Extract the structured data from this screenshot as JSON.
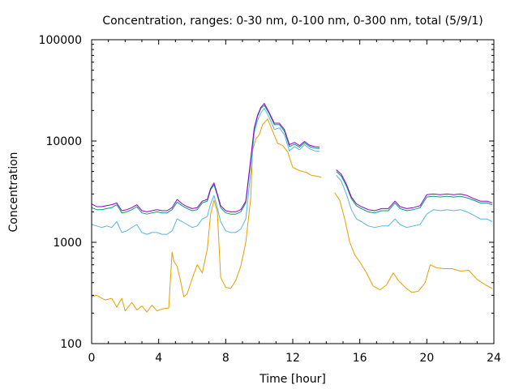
{
  "chart_data": {
    "type": "line",
    "title": "Concentration, ranges: 0-30 nm, 0-100 nm, 0-300 nm, total (5/9/1)",
    "xlabel": "Time [hour]",
    "ylabel": "Concentration",
    "xlim": [
      0,
      24
    ],
    "ylim": [
      100,
      100000
    ],
    "yscale": "log",
    "grid": false,
    "legend": "none",
    "x_ticks": [
      0,
      4,
      8,
      12,
      16,
      20,
      24
    ],
    "x_tick_labels": [
      "0",
      "4",
      "8",
      "12",
      "16",
      "20",
      "24"
    ],
    "y_ticks": [
      100,
      1000,
      10000,
      100000
    ],
    "y_tick_labels": [
      "100",
      "1000",
      "10000",
      "100000"
    ],
    "series": [
      {
        "name": "0-30 nm",
        "color": "#e69f00",
        "x": [
          0,
          0.3,
          0.8,
          1.2,
          1.5,
          1.8,
          2,
          2.4,
          2.7,
          3,
          3.3,
          3.6,
          3.9,
          4.2,
          4.6,
          4.8,
          4.9,
          5.1,
          5.3,
          5.5,
          5.7,
          6,
          6.3,
          6.6,
          6.9,
          7.1,
          7.3,
          7.5,
          7.7,
          8,
          8.3,
          8.6,
          8.9,
          9.2,
          9.5,
          9.6,
          9.8,
          10,
          10.2,
          10.5,
          10.8,
          11.1,
          11.4,
          11.7,
          12,
          12.4,
          12.8,
          13.1,
          13.4,
          13.7,
          null,
          14.5,
          14.8,
          15.1,
          15.4,
          15.7,
          16,
          16.4,
          16.8,
          17.2,
          17.6,
          18,
          18.3,
          18.7,
          19.1,
          19.5,
          19.9,
          20.2,
          20.6,
          21,
          21.5,
          22,
          22.5,
          23,
          23.5,
          23.9
        ],
        "y": [
          290,
          300,
          270,
          280,
          230,
          280,
          210,
          255,
          215,
          235,
          205,
          240,
          210,
          220,
          225,
          800,
          650,
          580,
          420,
          290,
          310,
          440,
          600,
          500,
          850,
          1900,
          2600,
          2000,
          450,
          360,
          350,
          420,
          580,
          1000,
          2800,
          8000,
          10500,
          11500,
          14500,
          16500,
          12500,
          9500,
          9000,
          7800,
          5500,
          5100,
          4900,
          4600,
          4500,
          4400,
          null,
          3100,
          2600,
          1700,
          1000,
          750,
          640,
          500,
          370,
          340,
          380,
          500,
          420,
          360,
          320,
          330,
          400,
          600,
          560,
          550,
          550,
          520,
          530,
          430,
          380,
          350
        ]
      },
      {
        "name": "0-100 nm",
        "color": "#56b4e9",
        "x": [
          0,
          0.3,
          0.6,
          0.9,
          1.2,
          1.5,
          1.8,
          2.1,
          2.4,
          2.7,
          3,
          3.3,
          3.6,
          3.9,
          4.2,
          4.5,
          4.8,
          5.1,
          5.4,
          5.7,
          6,
          6.3,
          6.6,
          6.9,
          7.1,
          7.3,
          7.5,
          7.7,
          8,
          8.3,
          8.6,
          8.9,
          9.2,
          9.5,
          9.7,
          9.9,
          10.1,
          10.3,
          10.6,
          10.9,
          11.2,
          11.5,
          11.8,
          12.1,
          12.4,
          12.7,
          13,
          13.3,
          13.6,
          null,
          14.6,
          14.9,
          15.2,
          15.5,
          15.8,
          16.1,
          16.5,
          16.9,
          17.3,
          17.7,
          18.1,
          18.4,
          18.8,
          19.2,
          19.6,
          20,
          20.4,
          20.8,
          21.2,
          21.6,
          22,
          22.4,
          22.8,
          23.2,
          23.6,
          23.9
        ],
        "y": [
          1500,
          1450,
          1400,
          1450,
          1400,
          1600,
          1250,
          1300,
          1400,
          1500,
          1250,
          1200,
          1250,
          1250,
          1200,
          1200,
          1300,
          1700,
          1600,
          1500,
          1400,
          1450,
          1700,
          1800,
          2400,
          2900,
          2200,
          1600,
          1300,
          1250,
          1250,
          1350,
          1700,
          5000,
          12000,
          16000,
          19000,
          21000,
          17000,
          13000,
          13500,
          11500,
          8000,
          8800,
          8200,
          9200,
          8400,
          8000,
          7900,
          null,
          4600,
          4000,
          3000,
          2100,
          1700,
          1600,
          1450,
          1400,
          1450,
          1450,
          1700,
          1500,
          1400,
          1450,
          1500,
          1900,
          2100,
          2050,
          2100,
          2050,
          2100,
          2000,
          1850,
          1700,
          1700,
          1600
        ]
      },
      {
        "name": "0-300 nm",
        "color": "#009e73",
        "x": [
          0,
          0.3,
          0.6,
          0.9,
          1.2,
          1.5,
          1.8,
          2.1,
          2.4,
          2.7,
          3,
          3.3,
          3.6,
          3.9,
          4.2,
          4.5,
          4.8,
          5.1,
          5.4,
          5.7,
          6,
          6.3,
          6.6,
          6.9,
          7.1,
          7.3,
          7.5,
          7.7,
          8,
          8.3,
          8.6,
          8.9,
          9.2,
          9.5,
          9.7,
          9.9,
          10.1,
          10.3,
          10.6,
          10.9,
          11.2,
          11.5,
          11.8,
          12.1,
          12.4,
          12.7,
          13,
          13.3,
          13.6,
          null,
          14.6,
          14.9,
          15.2,
          15.5,
          15.8,
          16.1,
          16.5,
          16.9,
          17.3,
          17.7,
          18.1,
          18.4,
          18.8,
          19.2,
          19.6,
          20,
          20.4,
          20.8,
          21.2,
          21.6,
          22,
          22.4,
          22.8,
          23.2,
          23.6,
          23.9
        ],
        "y": [
          2200,
          2100,
          2100,
          2150,
          2200,
          2350,
          1950,
          2000,
          2100,
          2250,
          1950,
          1900,
          1950,
          2000,
          1950,
          1950,
          2100,
          2500,
          2300,
          2150,
          2050,
          2100,
          2450,
          2550,
          3300,
          3700,
          2900,
          2200,
          1950,
          1900,
          1900,
          2000,
          2450,
          6500,
          13000,
          17500,
          21000,
          22500,
          18500,
          14500,
          14500,
          12500,
          8800,
          9300,
          8700,
          9600,
          8800,
          8500,
          8400,
          null,
          5000,
          4500,
          3600,
          2700,
          2300,
          2150,
          2000,
          1950,
          2050,
          2050,
          2450,
          2150,
          2050,
          2100,
          2200,
          2800,
          2850,
          2800,
          2850,
          2800,
          2850,
          2750,
          2600,
          2450,
          2450,
          2350
        ]
      },
      {
        "name": "total",
        "color": "#9400d3",
        "x": [
          0,
          0.3,
          0.6,
          0.9,
          1.2,
          1.5,
          1.8,
          2.1,
          2.4,
          2.7,
          3,
          3.3,
          3.6,
          3.9,
          4.2,
          4.5,
          4.8,
          5.1,
          5.4,
          5.7,
          6,
          6.3,
          6.6,
          6.9,
          7.1,
          7.3,
          7.5,
          7.7,
          8,
          8.3,
          8.6,
          8.9,
          9.2,
          9.5,
          9.7,
          9.9,
          10.1,
          10.3,
          10.6,
          10.9,
          11.2,
          11.5,
          11.8,
          12.1,
          12.4,
          12.7,
          13,
          13.3,
          13.6,
          null,
          14.6,
          14.9,
          15.2,
          15.5,
          15.8,
          16.1,
          16.5,
          16.9,
          17.3,
          17.7,
          18.1,
          18.4,
          18.8,
          19.2,
          19.6,
          20,
          20.4,
          20.8,
          21.2,
          21.6,
          22,
          22.4,
          22.8,
          23.2,
          23.6,
          23.9
        ],
        "y": [
          2400,
          2250,
          2250,
          2300,
          2350,
          2450,
          2050,
          2100,
          2200,
          2350,
          2050,
          2000,
          2050,
          2100,
          2050,
          2050,
          2200,
          2650,
          2400,
          2250,
          2150,
          2200,
          2550,
          2650,
          3400,
          3850,
          3000,
          2300,
          2050,
          2000,
          2000,
          2100,
          2550,
          6800,
          13500,
          18000,
          21500,
          23500,
          19000,
          15000,
          15000,
          13000,
          9200,
          9700,
          9000,
          9900,
          9100,
          8800,
          8700,
          null,
          5200,
          4700,
          3750,
          2800,
          2400,
          2250,
          2100,
          2050,
          2150,
          2150,
          2550,
          2250,
          2150,
          2200,
          2300,
          2950,
          3000,
          2950,
          3000,
          2950,
          3000,
          2900,
          2700,
          2550,
          2550,
          2450
        ]
      }
    ]
  }
}
